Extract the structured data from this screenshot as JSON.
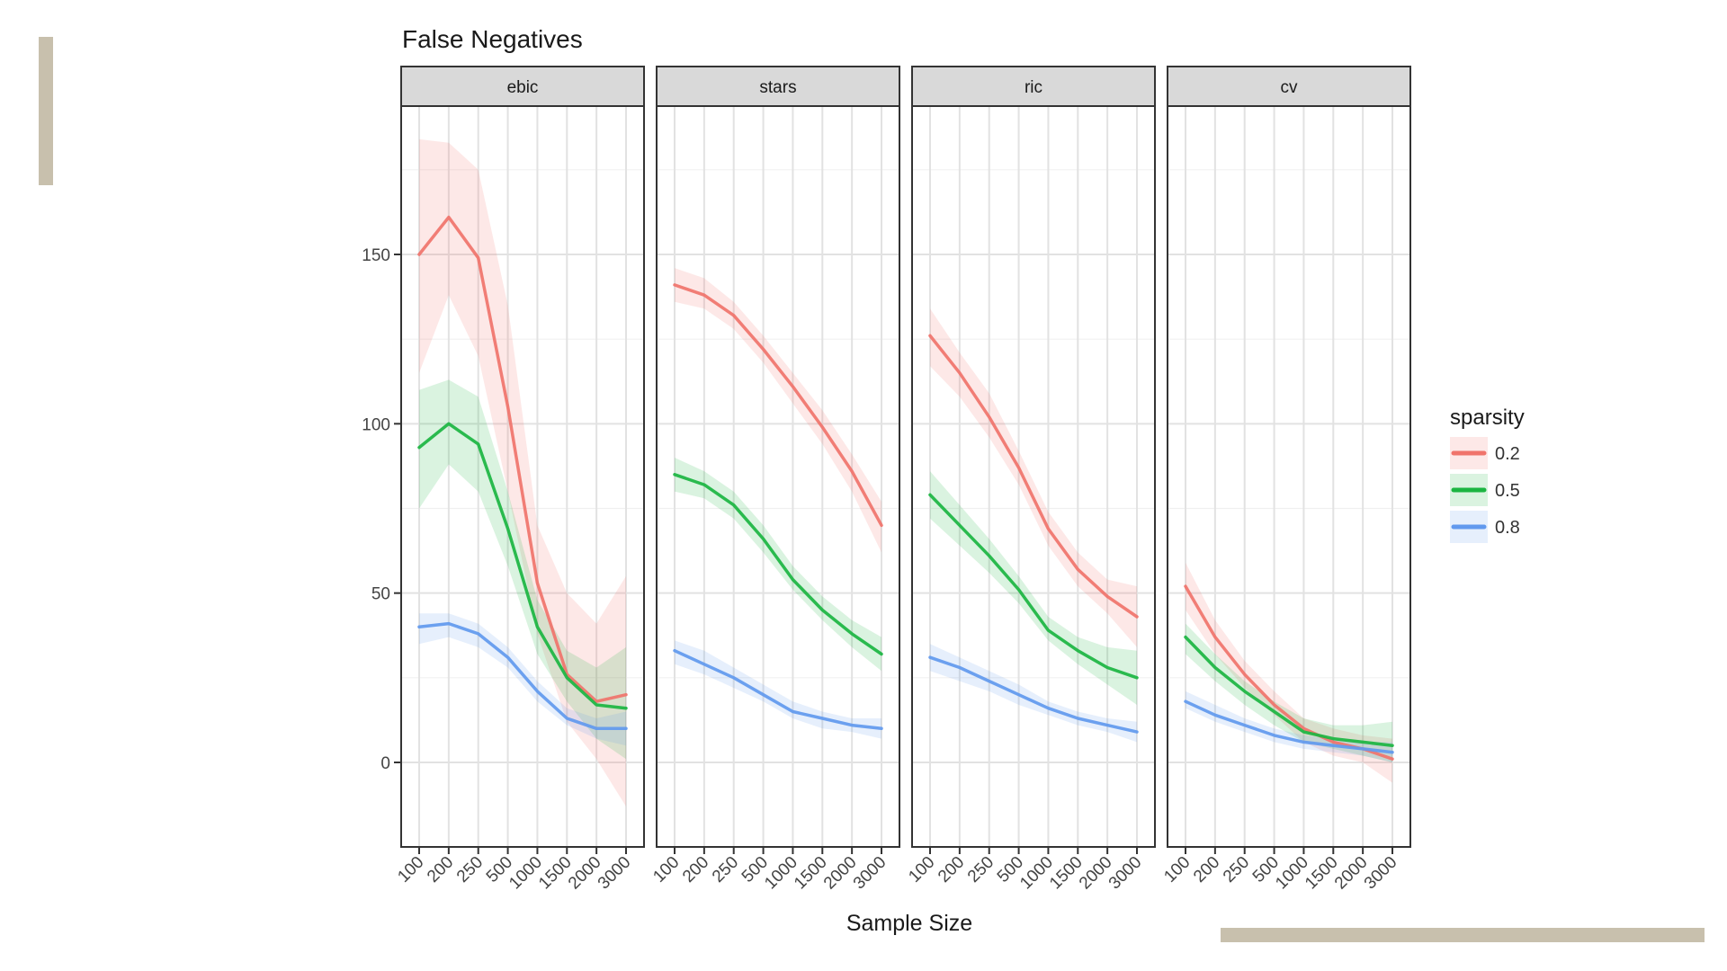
{
  "chart_data": {
    "type": "line",
    "title": "False Negatives",
    "xlabel": "Sample Size",
    "ylabel": "",
    "ylim": [
      -25,
      195
    ],
    "yticks": [
      0,
      50,
      100,
      150
    ],
    "categories": [
      "100",
      "200",
      "250",
      "500",
      "1000",
      "1500",
      "2000",
      "3000"
    ],
    "grid": true,
    "legend": {
      "title": "sparsity",
      "placement": "right",
      "entries": [
        "0.2",
        "0.5",
        "0.8"
      ]
    },
    "colors": {
      "0.2": "#f0736b",
      "0.5": "#1bb541",
      "0.8": "#6199ee"
    },
    "panels": [
      {
        "name": "ebic",
        "series": [
          {
            "name": "0.2",
            "values": [
              150,
              161,
              149,
              105,
              53,
              26,
              18,
              20
            ],
            "lower": [
              115,
              138,
              120,
              80,
              38,
              12,
              1,
              -13
            ],
            "upper": [
              184,
              183,
              175,
              135,
              70,
              50,
              41,
              55
            ]
          },
          {
            "name": "0.5",
            "values": [
              93,
              100,
              94,
              69,
              40,
              25,
              17,
              16
            ],
            "lower": [
              75,
              88,
              80,
              58,
              32,
              18,
              7,
              1
            ],
            "upper": [
              110,
              113,
              108,
              80,
              48,
              33,
              28,
              34
            ]
          },
          {
            "name": "0.8",
            "values": [
              40,
              41,
              38,
              31,
              21,
              13,
              10,
              10
            ],
            "lower": [
              35,
              37,
              34,
              28,
              18,
              11,
              7,
              5
            ],
            "upper": [
              44,
              44,
              41,
              34,
              24,
              16,
              13,
              15
            ]
          }
        ]
      },
      {
        "name": "stars",
        "series": [
          {
            "name": "0.2",
            "values": [
              141,
              138,
              132,
              122,
              111,
              99,
              86,
              70
            ],
            "lower": [
              136,
              134,
              128,
              118,
              106,
              94,
              80,
              62
            ],
            "upper": [
              146,
              143,
              136,
              126,
              115,
              104,
              91,
              77
            ]
          },
          {
            "name": "0.5",
            "values": [
              85,
              82,
              76,
              66,
              54,
              45,
              38,
              32
            ],
            "lower": [
              80,
              78,
              72,
              62,
              51,
              42,
              34,
              27
            ],
            "upper": [
              90,
              86,
              80,
              70,
              58,
              49,
              42,
              37
            ]
          },
          {
            "name": "0.8",
            "values": [
              33,
              29,
              25,
              20,
              15,
              13,
              11,
              10
            ],
            "lower": [
              29,
              26,
              22,
              18,
              13,
              10,
              9,
              7
            ],
            "upper": [
              36,
              33,
              28,
              23,
              18,
              15,
              13,
              13
            ]
          }
        ]
      },
      {
        "name": "ric",
        "series": [
          {
            "name": "0.2",
            "values": [
              126,
              115,
              102,
              87,
              69,
              57,
              49,
              43
            ],
            "lower": [
              117,
              108,
              96,
              82,
              64,
              52,
              44,
              34
            ],
            "upper": [
              134,
              121,
              109,
              92,
              74,
              62,
              54,
              52
            ]
          },
          {
            "name": "0.5",
            "values": [
              79,
              70,
              61,
              51,
              39,
              33,
              28,
              25
            ],
            "lower": [
              72,
              64,
              56,
              47,
              36,
              29,
              23,
              17
            ],
            "upper": [
              86,
              76,
              66,
              55,
              43,
              37,
              34,
              33
            ]
          },
          {
            "name": "0.8",
            "values": [
              31,
              28,
              24,
              20,
              16,
              13,
              11,
              9
            ],
            "lower": [
              27,
              24,
              21,
              17,
              14,
              11,
              9,
              6
            ],
            "upper": [
              35,
              31,
              27,
              23,
              18,
              15,
              13,
              12
            ]
          }
        ]
      },
      {
        "name": "cv",
        "series": [
          {
            "name": "0.2",
            "values": [
              52,
              37,
              26,
              17,
              10,
              6,
              4,
              1
            ],
            "lower": [
              45,
              32,
              22,
              14,
              6,
              2,
              0,
              -6
            ],
            "upper": [
              59,
              42,
              30,
              21,
              13,
              10,
              8,
              7
            ]
          },
          {
            "name": "0.5",
            "values": [
              37,
              28,
              21,
              15,
              9,
              7,
              6,
              5
            ],
            "lower": [
              32,
              24,
              17,
              11,
              6,
              4,
              2,
              0
            ],
            "upper": [
              41,
              32,
              24,
              18,
              13,
              11,
              11,
              12
            ]
          },
          {
            "name": "0.8",
            "values": [
              18,
              14,
              11,
              8,
              6,
              5,
              4,
              3
            ],
            "lower": [
              16,
              12,
              9,
              6,
              4,
              3,
              2,
              0
            ],
            "upper": [
              21,
              17,
              13,
              10,
              8,
              7,
              6,
              6
            ]
          }
        ]
      }
    ]
  }
}
